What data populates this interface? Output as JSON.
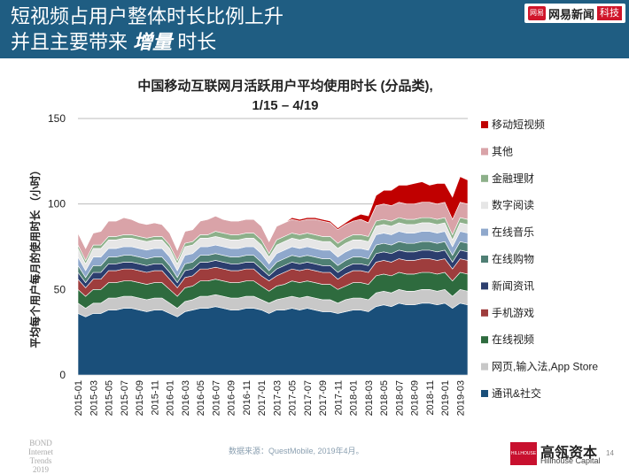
{
  "slide": {
    "title_line1": "短视频占用户整体时长比例上升",
    "title_line2_a": "并且主要带来",
    "title_line2_b": "增量",
    "title_line2_c": "时长",
    "badge_logo": "网易",
    "badge_text": "网易新闻",
    "badge_sub": "科技",
    "source": "数据来源：QuestMobile, 2019年4月。",
    "bond_line1": "BOND",
    "bond_line2": "Internet Trends",
    "bond_line3": "2019",
    "hillhouse_logo": "HILLHOUSE",
    "hillhouse_cn": "高瓴资本",
    "hillhouse_en": "Hillhouse Capital",
    "page_number": "14"
  },
  "colors": {
    "header_bg": "#1f5d82",
    "accent_red": "#c8102e"
  },
  "chart_data": {
    "type": "area",
    "stacked": true,
    "title_line1": "中国移动互联网月活跃用户平均使用时长 (分品类),",
    "title_line2": "1/15 – 4/19",
    "ylabel": "平均每个用户每月的使用时长 （小时）",
    "ylim": [
      0,
      150
    ],
    "yticks": [
      0,
      50,
      100,
      150
    ],
    "grid": true,
    "legend_position": "right",
    "x": [
      "2015-01",
      "2015-02",
      "2015-03",
      "2015-04",
      "2015-05",
      "2015-06",
      "2015-07",
      "2015-08",
      "2015-09",
      "2015-10",
      "2015-11",
      "2015-12",
      "2016-01",
      "2016-02",
      "2016-03",
      "2016-04",
      "2016-05",
      "2016-06",
      "2016-07",
      "2016-08",
      "2016-09",
      "2016-10",
      "2016-11",
      "2016-12",
      "2017-01",
      "2017-02",
      "2017-03",
      "2017-04",
      "2017-05",
      "2017-06",
      "2017-07",
      "2017-08",
      "2017-09",
      "2017-10",
      "2017-11",
      "2017-12",
      "2018-01",
      "2018-02",
      "2018-03",
      "2018-04",
      "2018-05",
      "2018-06",
      "2018-07",
      "2018-08",
      "2018-09",
      "2018-10",
      "2018-11",
      "2018-12",
      "2019-01",
      "2019-02",
      "2019-03",
      "2019-04"
    ],
    "x_tick_labels": [
      "2015-01",
      "2015-03",
      "2015-05",
      "2015-07",
      "2015-09",
      "2015-11",
      "2016-01",
      "2016-03",
      "2016-05",
      "2016-07",
      "2016-09",
      "2016-11",
      "2017-01",
      "2017-03",
      "2017-05",
      "2017-07",
      "2017-09",
      "2017-11",
      "2018-01",
      "2018-03",
      "2018-05",
      "2018-07",
      "2018-09",
      "2018-11",
      "2019-01",
      "2019-03"
    ],
    "series": [
      {
        "name": "通讯&社交",
        "color": "#1a4f7a",
        "values": [
          36,
          34,
          36,
          36,
          38,
          38,
          39,
          39,
          38,
          37,
          38,
          38,
          36,
          34,
          37,
          38,
          39,
          39,
          40,
          39,
          38,
          38,
          39,
          39,
          38,
          36,
          38,
          38,
          39,
          38,
          39,
          38,
          37,
          37,
          36,
          37,
          38,
          38,
          37,
          40,
          41,
          40,
          42,
          41,
          41,
          42,
          42,
          41,
          42,
          39,
          42,
          41
        ]
      },
      {
        "name": "网页,输入法,App Store",
        "color": "#c8c8c8",
        "values": [
          6,
          5,
          6,
          6,
          7,
          7,
          7,
          7,
          7,
          7,
          7,
          7,
          6,
          5,
          6,
          6,
          7,
          7,
          7,
          7,
          7,
          7,
          7,
          7,
          6,
          6,
          6,
          7,
          7,
          7,
          7,
          7,
          7,
          7,
          6,
          7,
          7,
          7,
          7,
          8,
          8,
          8,
          8,
          8,
          8,
          8,
          8,
          8,
          8,
          7,
          8,
          8
        ]
      },
      {
        "name": "在线视频",
        "color": "#2e6b3e",
        "values": [
          8,
          7,
          8,
          8,
          9,
          9,
          9,
          9,
          9,
          9,
          9,
          9,
          8,
          7,
          8,
          8,
          9,
          9,
          9,
          9,
          9,
          9,
          9,
          9,
          8,
          7,
          8,
          8,
          9,
          9,
          9,
          9,
          9,
          9,
          8,
          8,
          9,
          9,
          9,
          10,
          10,
          10,
          10,
          10,
          10,
          10,
          10,
          10,
          10,
          9,
          10,
          10
        ]
      },
      {
        "name": "手机游戏",
        "color": "#9e3d3d",
        "values": [
          6,
          5,
          6,
          6,
          7,
          7,
          7,
          7,
          7,
          7,
          7,
          7,
          6,
          5,
          6,
          6,
          7,
          7,
          7,
          7,
          7,
          7,
          7,
          7,
          6,
          6,
          6,
          7,
          7,
          7,
          7,
          7,
          7,
          7,
          6,
          7,
          7,
          7,
          7,
          8,
          8,
          8,
          8,
          8,
          8,
          8,
          8,
          8,
          8,
          7,
          8,
          8
        ]
      },
      {
        "name": "新闻资讯",
        "color": "#2c3e6e",
        "values": [
          4,
          3,
          4,
          4,
          4,
          4,
          4,
          4,
          4,
          4,
          4,
          4,
          4,
          3,
          4,
          4,
          4,
          4,
          4,
          4,
          4,
          4,
          4,
          4,
          4,
          3,
          4,
          4,
          4,
          4,
          4,
          4,
          4,
          4,
          4,
          4,
          4,
          4,
          4,
          5,
          5,
          5,
          5,
          5,
          5,
          5,
          5,
          5,
          5,
          4,
          5,
          5
        ]
      },
      {
        "name": "在线购物",
        "color": "#4f7f74",
        "values": [
          4,
          3,
          4,
          4,
          4,
          4,
          4,
          4,
          4,
          4,
          4,
          4,
          4,
          3,
          4,
          4,
          4,
          4,
          4,
          4,
          4,
          4,
          4,
          4,
          4,
          3,
          4,
          4,
          4,
          4,
          4,
          4,
          4,
          4,
          4,
          4,
          4,
          4,
          4,
          5,
          5,
          5,
          5,
          5,
          5,
          5,
          5,
          5,
          5,
          4,
          5,
          5
        ]
      },
      {
        "name": "在线音乐",
        "color": "#8fa8cc",
        "values": [
          5,
          4,
          5,
          5,
          5,
          5,
          5,
          5,
          5,
          5,
          5,
          5,
          5,
          4,
          5,
          5,
          5,
          5,
          5,
          5,
          5,
          5,
          5,
          5,
          5,
          4,
          5,
          5,
          5,
          5,
          5,
          5,
          5,
          5,
          5,
          5,
          5,
          5,
          5,
          6,
          6,
          6,
          6,
          6,
          6,
          6,
          6,
          6,
          6,
          5,
          6,
          6
        ]
      },
      {
        "name": "数字阅读",
        "color": "#e6e6e6",
        "values": [
          5,
          4,
          5,
          5,
          5,
          5,
          5,
          5,
          5,
          5,
          5,
          5,
          5,
          4,
          5,
          5,
          5,
          5,
          5,
          5,
          5,
          5,
          5,
          5,
          5,
          4,
          5,
          5,
          5,
          5,
          5,
          5,
          5,
          5,
          5,
          5,
          5,
          5,
          5,
          5,
          5,
          5,
          5,
          5,
          5,
          5,
          5,
          5,
          5,
          4,
          5,
          5
        ]
      },
      {
        "name": "金融理财",
        "color": "#8db08a",
        "values": [
          2,
          2,
          2,
          2,
          2,
          2,
          2,
          2,
          2,
          2,
          2,
          2,
          2,
          2,
          2,
          2,
          2,
          2,
          3,
          3,
          3,
          3,
          3,
          3,
          3,
          2,
          3,
          3,
          3,
          3,
          3,
          3,
          3,
          3,
          3,
          3,
          3,
          3,
          3,
          3,
          3,
          3,
          3,
          3,
          3,
          3,
          3,
          3,
          3,
          3,
          3,
          3
        ]
      },
      {
        "name": "其他",
        "color": "#d9a3a8",
        "values": [
          7,
          7,
          7,
          8,
          9,
          9,
          10,
          9,
          8,
          8,
          8,
          7,
          7,
          6,
          7,
          7,
          8,
          9,
          9,
          8,
          8,
          8,
          8,
          8,
          8,
          7,
          8,
          8,
          8,
          8,
          8,
          9,
          9,
          8,
          8,
          8,
          8,
          9,
          8,
          9,
          9,
          9,
          9,
          9,
          9,
          9,
          9,
          9,
          9,
          9,
          9,
          9
        ]
      },
      {
        "name": "移动短视频",
        "color": "#c00000",
        "values": [
          0,
          0,
          0,
          0,
          0,
          0,
          0,
          0,
          0,
          0,
          0,
          0,
          0,
          0,
          0,
          0,
          0,
          0,
          0,
          0,
          0,
          0,
          0,
          0,
          0,
          0,
          0,
          0,
          1,
          1,
          1,
          1,
          1,
          1,
          1,
          1,
          2,
          3,
          4,
          6,
          8,
          9,
          10,
          11,
          12,
          12,
          10,
          12,
          11,
          13,
          15,
          14
        ]
      }
    ],
    "legend_order": [
      "移动短视频",
      "其他",
      "金融理财",
      "数字阅读",
      "在线音乐",
      "在线购物",
      "新闻资讯",
      "手机游戏",
      "在线视频",
      "网页,输入法,App Store",
      "通讯&社交"
    ]
  }
}
